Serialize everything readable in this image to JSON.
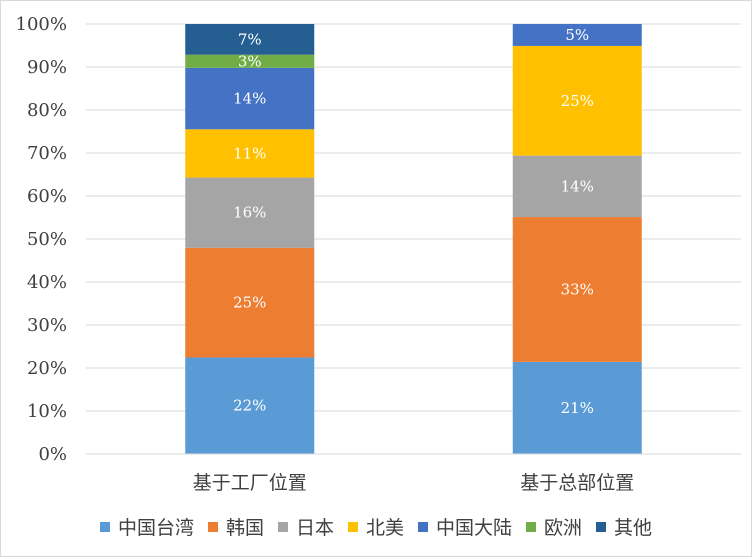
{
  "chart_data": {
    "type": "bar",
    "stacked": true,
    "percent": true,
    "categories": [
      "基于工厂位置",
      "基于总部位置"
    ],
    "ylim": [
      0,
      100
    ],
    "y_ticks": [
      "0%",
      "10%",
      "20%",
      "30%",
      "40%",
      "50%",
      "60%",
      "70%",
      "80%",
      "90%",
      "100%"
    ],
    "grid": true,
    "legend_position": "bottom",
    "series": [
      {
        "name": "中国台湾",
        "color": "#5b9bd5",
        "values": [
          22,
          21
        ],
        "labels": [
          "22%",
          "21%"
        ]
      },
      {
        "name": "韩国",
        "color": "#ed7d31",
        "values": [
          25,
          33
        ],
        "labels": [
          "25%",
          "33%"
        ]
      },
      {
        "name": "日本",
        "color": "#a5a5a5",
        "values": [
          16,
          14
        ],
        "labels": [
          "16%",
          "14%"
        ]
      },
      {
        "name": "北美",
        "color": "#ffc000",
        "values": [
          11,
          25
        ],
        "labels": [
          "11%",
          "25%"
        ]
      },
      {
        "name": "中国大陆",
        "color": "#4472c4",
        "values": [
          14,
          5
        ],
        "labels": [
          "14%",
          "5%"
        ]
      },
      {
        "name": "欧洲",
        "color": "#70ad47",
        "values": [
          3,
          0
        ],
        "labels": [
          "3%",
          ""
        ]
      },
      {
        "name": "其他",
        "color": "#255e91",
        "values": [
          7,
          0
        ],
        "labels": [
          "7%",
          ""
        ]
      }
    ]
  }
}
